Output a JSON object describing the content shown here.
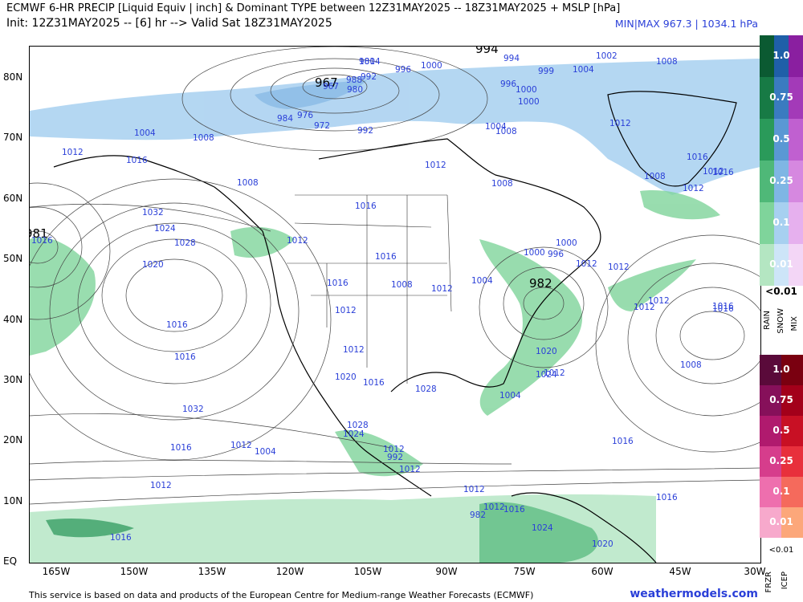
{
  "header": {
    "line1": "ECMWF 6-HR PRECIP [Liquid Equiv | inch] & Dominant TYPE between 12Z31MAY2025 -- 18Z31MAY2025 + MSLP [hPa]",
    "line2": "Init: 12Z31MAY2025 -- [6] hr --> Valid Sat 18Z31MAY2025",
    "minmax": "MIN|MAX 967.3 | 1034.1 hPa"
  },
  "axes": {
    "lat_labels": [
      "80N",
      "70N",
      "60N",
      "50N",
      "40N",
      "30N",
      "20N",
      "10N",
      "EQ"
    ],
    "lon_labels": [
      "165W",
      "150W",
      "135W",
      "120W",
      "105W",
      "90W",
      "75W",
      "60W",
      "45W",
      "30W"
    ]
  },
  "isobars": [
    "1004",
    "996",
    "1000",
    "994",
    "1002",
    "999",
    "1004",
    "1008",
    "988",
    "992",
    "967",
    "980",
    "984",
    "976",
    "972",
    "992",
    "1000",
    "996",
    "1000",
    "1004",
    "1008",
    "1004",
    "1008",
    "1012",
    "1012",
    "1016",
    "1008",
    "1012",
    "1008",
    "1016",
    "1012",
    "1012",
    "1008",
    "1016",
    "1032",
    "1016",
    "1024",
    "1012",
    "1016",
    "1028",
    "1020",
    "1008",
    "1016",
    "1012",
    "1004",
    "1012",
    "1012",
    "1000",
    "996",
    "1000",
    "1012",
    "1012",
    "1008",
    "1016",
    "1016",
    "1016",
    "1016",
    "1012",
    "1020",
    "1024",
    "1032",
    "1012",
    "1028",
    "1028",
    "1004",
    "1016",
    "1016",
    "1012",
    "1004",
    "992",
    "982",
    "1012",
    "1024",
    "1024",
    "1020",
    "1020",
    "1016",
    "1016",
    "1016",
    "1016",
    "1012",
    "1012",
    "1012",
    "1012",
    "1012",
    "1016",
    "981"
  ],
  "lows": [
    "967",
    "994",
    "982",
    "981"
  ],
  "legend": {
    "rain_snow_mix_levels": [
      "1.0",
      "0.75",
      "0.5",
      "0.25",
      "0.1",
      "0.01"
    ],
    "below_threshold": "<0.01",
    "type_labels": [
      "RAIN",
      "SNOW",
      "MIX"
    ],
    "frz_icep_levels": [
      "1.0",
      "0.75",
      "0.5",
      "0.25",
      "0.1",
      "0.01"
    ],
    "frz_below": "<0.01",
    "frz_labels": [
      "FRZR",
      "ICEP"
    ],
    "colors": {
      "rain": [
        "#0b5a32",
        "#177a45",
        "#2a9a5a",
        "#4fb878",
        "#7fd49b",
        "#b4e6c2"
      ],
      "snow": [
        "#1f5fa8",
        "#3a7bc0",
        "#5a98d4",
        "#7fb6e4",
        "#a7d0f0",
        "#cde5f8"
      ],
      "mix": [
        "#8a1fa0",
        "#a33ab8",
        "#c060d0",
        "#d688e0",
        "#e6b0ee",
        "#f3d6f6"
      ],
      "frzr": [
        "#5a0a3a",
        "#86105a",
        "#b01a6e",
        "#d63d8c",
        "#ee6fae",
        "#f7a9cc"
      ],
      "icep": [
        "#7a0010",
        "#a3001a",
        "#c81024",
        "#e8303c",
        "#f56a5c",
        "#fca77a"
      ]
    }
  },
  "footer": "This service is based on data and products of the European Centre for Medium-range Weather Forecasts (ECMWF)",
  "brand": "weathermodels.com"
}
